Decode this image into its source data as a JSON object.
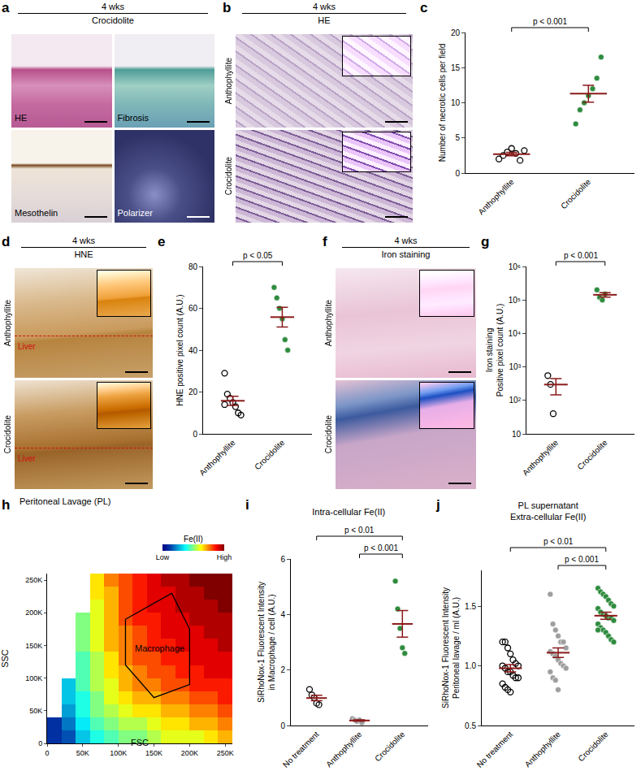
{
  "image_panels": [
    {
      "panel": "a",
      "header": [
        "4 wks",
        "Crocidolite"
      ],
      "images": [
        "HE",
        "Fibrosis",
        "Mesothelin",
        "Polarizer"
      ]
    },
    {
      "panel": "b",
      "header": [
        "4 wks",
        "HE"
      ],
      "rows": [
        "Anthophyllite",
        "Crocidolite"
      ]
    },
    {
      "panel": "d",
      "header": [
        "4 wks",
        "HNE"
      ],
      "rows": [
        "Anthophyllite",
        "Crocidolite"
      ],
      "inset_label": "Liver"
    },
    {
      "panel": "f",
      "header": [
        "4 wks",
        "Iron staining"
      ],
      "rows": [
        "Anthophyllite",
        "Crocidolite"
      ]
    }
  ],
  "chart_data": [
    {
      "panel": "c",
      "type": "dot",
      "ylabel": "Number of necrotic cells per field",
      "ylim": [
        0,
        20
      ],
      "yticks": [
        0,
        5,
        10,
        15,
        20
      ],
      "grid": false,
      "series": [
        {
          "name": "Anthophyllite",
          "color": "#000000",
          "marker": "open",
          "values": [
            2.0,
            2.5,
            3.0,
            3.5,
            2.8,
            1.8,
            3.2
          ],
          "mean": 2.7,
          "sem": 0.24
        },
        {
          "name": "Crocidolite",
          "color": "#2e8b3e",
          "marker": "filled",
          "values": [
            7.0,
            9.0,
            10.0,
            11.0,
            12.0,
            13.5,
            16.5
          ],
          "mean": 11.3,
          "sem": 1.2
        }
      ],
      "comparisons": [
        {
          "from": "Anthophyllite",
          "to": "Crocidolite",
          "label": "p < 0.001"
        }
      ]
    },
    {
      "panel": "e",
      "type": "dot",
      "ylabel": "HNE positive pixel count (A.U.)",
      "ylim": [
        0,
        80
      ],
      "yticks": [
        0,
        20,
        40,
        60,
        80
      ],
      "grid": false,
      "series": [
        {
          "name": "Anthophyllite",
          "color": "#000000",
          "marker": "open",
          "values": [
            29,
            19,
            17,
            15,
            13,
            10,
            9,
            14
          ],
          "mean": 15.8,
          "sem": 2.2
        },
        {
          "name": "Crocidolite",
          "color": "#2e8b3e",
          "marker": "filled",
          "values": [
            70,
            65,
            60,
            55,
            45,
            40
          ],
          "mean": 55.8,
          "sem": 4.7
        }
      ],
      "comparisons": [
        {
          "from": "Anthophyllite",
          "to": "Crocidolite",
          "label": "p < 0.05"
        }
      ]
    },
    {
      "panel": "g",
      "type": "dot",
      "log": "y",
      "ylabel": "Iron staining\nPositive pixel count (A.U.)",
      "ylim": [
        10,
        1000000
      ],
      "yticks": [
        10,
        {
          "value": 100,
          "label": "10²"
        },
        {
          "value": 1000,
          "label": "10³"
        },
        {
          "value": 10000,
          "label": "10⁴"
        },
        {
          "value": 100000,
          "label": "10⁵"
        },
        {
          "value": 1000000,
          "label": "10⁶"
        }
      ],
      "grid": false,
      "series": [
        {
          "name": "Anthophyllite",
          "color": "#000000",
          "marker": "open",
          "values": [
            550,
            300,
            40
          ],
          "mean": 297,
          "sem": 150
        },
        {
          "name": "Crocidolite",
          "color": "#2e8b3e",
          "marker": "filled",
          "values": [
            200000,
            120000,
            100000,
            150000
          ],
          "mean": 142500,
          "sem": 21700
        }
      ],
      "comparisons": [
        {
          "from": "Anthophyllite",
          "to": "Crocidolite",
          "label": "p < 0.001"
        }
      ]
    },
    {
      "panel": "h",
      "type": "heatmap",
      "title": "Peritoneal Lavage (PL)",
      "xlabel": "FSC",
      "ylabel": "SSC",
      "x": [
        10000,
        30000,
        50000,
        70000,
        90000,
        110000,
        130000,
        150000,
        170000,
        190000,
        210000,
        230000,
        250000
      ],
      "y": [
        10000,
        30000,
        50000,
        70000,
        90000,
        110000,
        130000,
        150000,
        170000,
        190000,
        210000,
        230000,
        250000
      ],
      "z": [
        [
          0.1,
          0.15,
          0.3,
          0.4,
          0.45,
          0.5,
          0.5,
          0.55,
          0.6,
          0.6,
          0.6,
          0.65,
          0.7
        ],
        [
          0.1,
          0.2,
          0.35,
          0.45,
          0.5,
          0.55,
          0.55,
          0.6,
          0.65,
          0.65,
          0.7,
          0.7,
          0.75
        ],
        [
          null,
          0.25,
          0.4,
          0.5,
          0.55,
          0.6,
          0.65,
          0.65,
          0.7,
          0.7,
          0.75,
          0.75,
          0.8
        ],
        [
          null,
          0.3,
          0.4,
          0.5,
          0.6,
          0.65,
          0.7,
          0.7,
          0.75,
          0.75,
          0.8,
          0.8,
          0.85
        ],
        [
          null,
          0.3,
          0.45,
          0.55,
          0.6,
          0.7,
          0.75,
          0.75,
          0.8,
          0.8,
          0.85,
          0.85,
          0.85
        ],
        [
          null,
          null,
          0.45,
          0.55,
          0.65,
          0.7,
          0.75,
          0.8,
          0.8,
          0.85,
          0.85,
          0.9,
          0.9
        ],
        [
          null,
          null,
          0.45,
          0.55,
          0.65,
          0.75,
          0.8,
          0.8,
          0.85,
          0.85,
          0.9,
          0.9,
          0.9
        ],
        [
          null,
          null,
          0.5,
          0.6,
          0.7,
          0.75,
          0.8,
          0.85,
          0.85,
          0.9,
          0.9,
          0.9,
          0.95
        ],
        [
          null,
          null,
          0.5,
          0.6,
          0.7,
          0.75,
          0.8,
          0.85,
          0.9,
          0.9,
          0.9,
          0.95,
          0.95
        ],
        [
          null,
          null,
          0.5,
          0.6,
          0.7,
          0.8,
          0.85,
          0.85,
          0.9,
          0.9,
          0.95,
          0.95,
          0.95
        ],
        [
          null,
          null,
          null,
          0.6,
          0.7,
          0.8,
          0.85,
          0.9,
          0.9,
          0.95,
          0.95,
          0.95,
          1.0
        ],
        [
          null,
          null,
          null,
          0.65,
          0.7,
          0.8,
          0.85,
          0.9,
          0.9,
          0.95,
          0.95,
          1.0,
          1.0
        ],
        [
          null,
          null,
          null,
          0.65,
          0.75,
          0.8,
          0.85,
          0.9,
          0.95,
          0.95,
          1.0,
          1.0,
          1.0
        ]
      ],
      "xlim": [
        0,
        260000
      ],
      "ylim": [
        0,
        260000
      ],
      "xticks": [
        0,
        {
          "value": 50000,
          "label": "50K"
        },
        {
          "value": 100000,
          "label": "100K"
        },
        {
          "value": 150000,
          "label": "150K"
        },
        {
          "value": 200000,
          "label": "200K"
        },
        {
          "value": 250000,
          "label": "250K"
        }
      ],
      "yticks": [
        0,
        {
          "value": 50000,
          "label": "50K"
        },
        {
          "value": 100000,
          "label": "100K"
        },
        {
          "value": 150000,
          "label": "150K"
        },
        {
          "value": 200000,
          "label": "200K"
        },
        {
          "value": 250000,
          "label": "250K"
        }
      ],
      "grid": false,
      "colorbar": {
        "title": "Fe(II)",
        "range": [
          0,
          1
        ],
        "ticks": [
          {
            "value": 0,
            "label": "Low"
          },
          {
            "value": 1,
            "label": "High"
          }
        ]
      },
      "gate": {
        "label": "Macrophage",
        "x": [
          110000,
          175000,
          200000,
          200000,
          150000,
          110000
        ],
        "y": [
          190000,
          230000,
          175000,
          90000,
          70000,
          120000
        ]
      }
    },
    {
      "panel": "i",
      "type": "dot",
      "title": "Intra-cellular Fe(II)",
      "ylabel": "SiRhoNox-1 Fluorescent Intensity\nin Macrophage / cell (A.U.)",
      "ylim": [
        0,
        6
      ],
      "yticks": [
        0,
        2,
        4,
        6
      ],
      "grid": false,
      "series": [
        {
          "name": "No treatment",
          "color": "#000000",
          "marker": "open",
          "values": [
            1.3,
            1.1,
            1.0,
            0.8,
            0.75
          ],
          "mean": 0.99,
          "sem": 0.1
        },
        {
          "name": "Anthophyllite",
          "color": "#9e9e9e",
          "marker": "filled",
          "values": [
            0.25,
            0.2,
            0.15,
            0.2,
            0.1
          ],
          "mean": 0.18,
          "sem": 0.025
        },
        {
          "name": "Crocidolite",
          "color": "#2e8b3e",
          "marker": "filled",
          "values": [
            5.2,
            4.2,
            3.5,
            2.8,
            2.6
          ],
          "mean": 3.66,
          "sem": 0.48
        }
      ],
      "comparisons": [
        {
          "from": "No treatment",
          "to": "Crocidolite",
          "label": "p < 0.01"
        },
        {
          "from": "Anthophyllite",
          "to": "Crocidolite",
          "label": "p < 0.001"
        }
      ]
    },
    {
      "panel": "j",
      "type": "dot",
      "title": "PL supernatant\nExtra-cellular Fe(II)",
      "ylabel": "SiRhoNox-1 Fluorescent Intensity\nPeritoneal lavage / ml (A.U.)",
      "ylim": [
        0.5,
        1.8
      ],
      "yticks": [
        0.5,
        {
          "value": 1.0,
          "label": "1.0"
        },
        1.5
      ],
      "grid": false,
      "series": [
        {
          "name": "No treatment",
          "color": "#000000",
          "marker": "open",
          "values": [
            1.2,
            1.2,
            1.15,
            1.1,
            1.05,
            1.02,
            1.0,
            1.0,
            0.98,
            0.95,
            0.95,
            0.92,
            0.9,
            0.9,
            0.85,
            0.82,
            0.8,
            0.78
          ],
          "mean": 0.98,
          "sem": 0.03
        },
        {
          "name": "Anthophyllite",
          "color": "#9e9e9e",
          "marker": "filled",
          "values": [
            1.6,
            1.35,
            1.3,
            1.25,
            1.2,
            1.2,
            1.15,
            1.12,
            1.1,
            1.08,
            1.05,
            1.02,
            1.0,
            0.98,
            0.95,
            0.9,
            0.88,
            0.8
          ],
          "mean": 1.11,
          "sem": 0.04
        },
        {
          "name": "Crocidolite",
          "color": "#2e8b3e",
          "marker": "filled",
          "values": [
            1.65,
            1.62,
            1.6,
            1.58,
            1.55,
            1.52,
            1.5,
            1.48,
            1.45,
            1.43,
            1.42,
            1.4,
            1.4,
            1.38,
            1.35,
            1.32,
            1.3,
            1.28,
            1.25,
            1.22,
            1.2,
            1.3
          ],
          "mean": 1.42,
          "sem": 0.03
        }
      ],
      "comparisons": [
        {
          "from": "No treatment",
          "to": "Crocidolite",
          "label": "p < 0.01"
        },
        {
          "from": "Anthophyllite",
          "to": "Crocidolite",
          "label": "p < 0.001"
        }
      ]
    }
  ]
}
